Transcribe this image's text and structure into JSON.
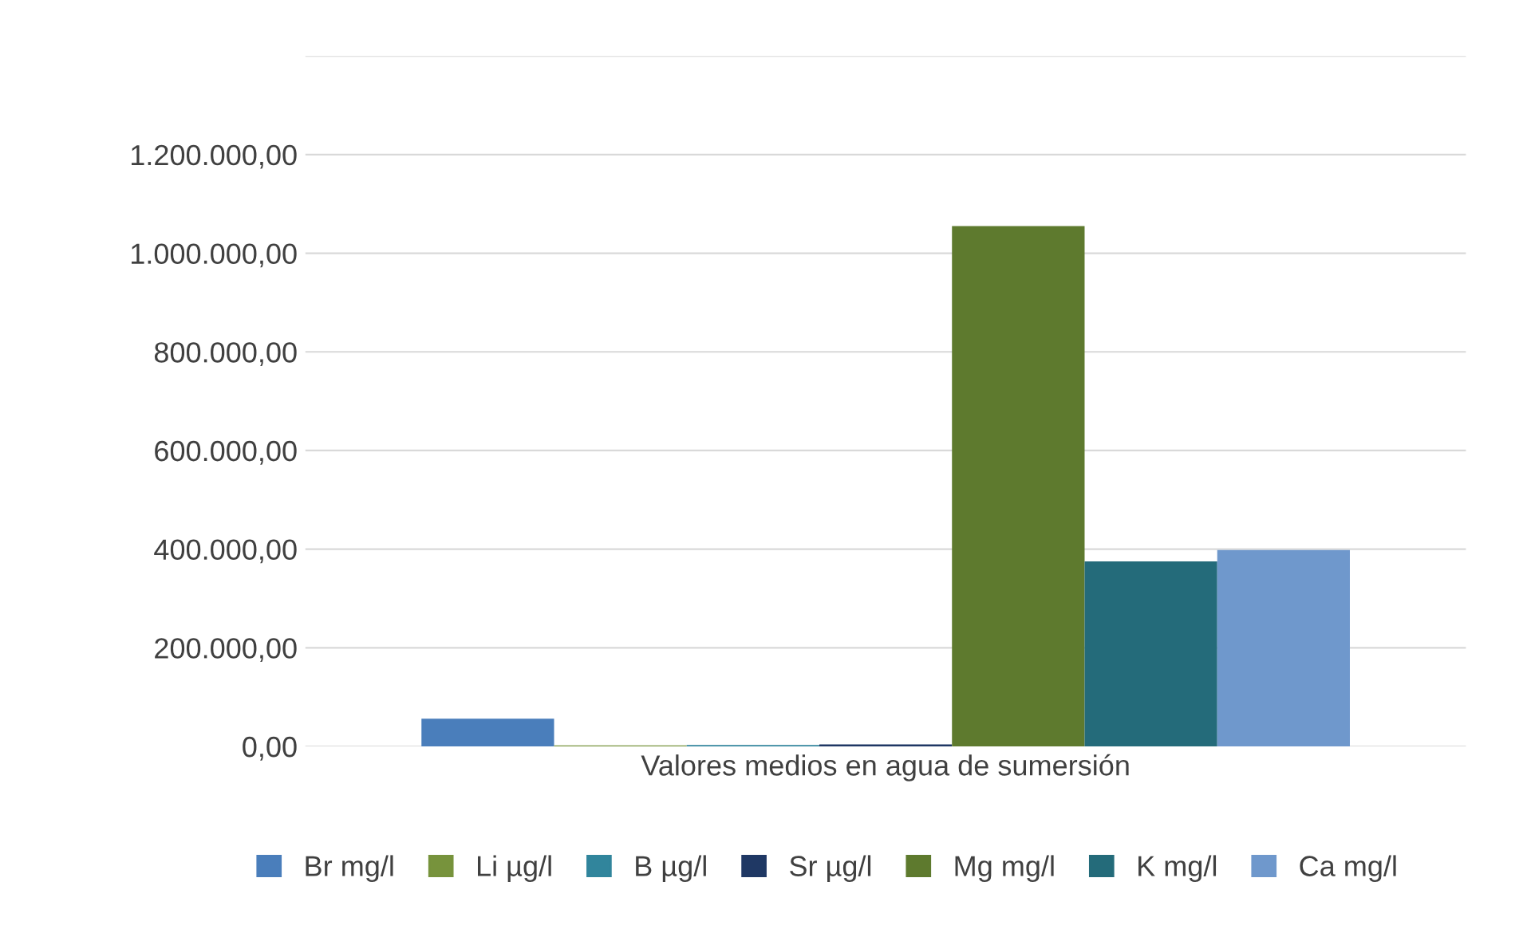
{
  "chart_data": {
    "type": "bar",
    "categories": [
      "Valores medios en agua de sumersión"
    ],
    "series": [
      {
        "name": "Br mg/l",
        "color": "#4a7ebb",
        "values": [
          56000
        ]
      },
      {
        "name": "Li µg/l",
        "color": "#77933c",
        "values": [
          2000
        ]
      },
      {
        "name": "B µg/l",
        "color": "#31859c",
        "values": [
          3000
        ]
      },
      {
        "name": "Sr µg/l",
        "color": "#1f3864",
        "values": [
          4000
        ]
      },
      {
        "name": "Mg mg/l",
        "color": "#5e7a2e",
        "values": [
          1055000
        ]
      },
      {
        "name": "K mg/l",
        "color": "#246b7a",
        "values": [
          375000
        ]
      },
      {
        "name": "Ca mg/l",
        "color": "#6f98cc",
        "values": [
          398000
        ]
      }
    ],
    "ylim": [
      0,
      1400000
    ],
    "yticks": [
      {
        "value": 0,
        "label": "0,00"
      },
      {
        "value": 200000,
        "label": "200.000,00"
      },
      {
        "value": 400000,
        "label": "400.000,00"
      },
      {
        "value": 600000,
        "label": "600.000,00"
      },
      {
        "value": 800000,
        "label": "800.000,00"
      },
      {
        "value": 1000000,
        "label": "1.000.000,00"
      },
      {
        "value": 1200000,
        "label": "1.200.000,00"
      },
      {
        "value": 1400000,
        "label": null
      }
    ],
    "grid": "y",
    "legend": "bottom"
  }
}
